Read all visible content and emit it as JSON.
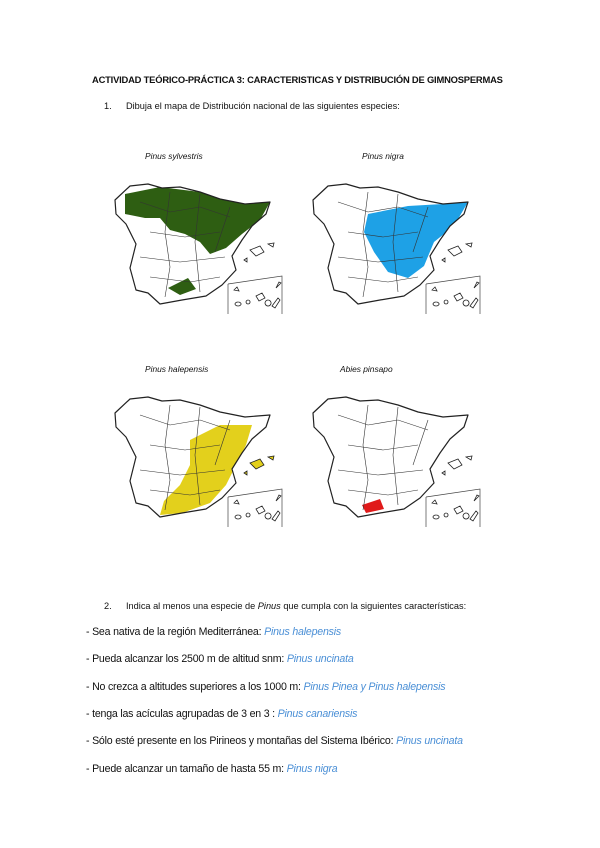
{
  "title": "ACTIVIDAD TEÓRICO-PRÁCTICA 3: CARACTERISTICAS Y DISTRIBUCIÓN DE GIMNOSPERMAS",
  "question1": {
    "number": "1.",
    "text": "Dibuja el mapa de Distribución nacional de las siguientes especies:"
  },
  "maps": [
    {
      "species": "Pinus sylvestris",
      "color": "#2e5e12"
    },
    {
      "species": "Pinus nigra",
      "color": "#1ea1e6"
    },
    {
      "species": "Pinus halepensis",
      "color": "#e3d01c"
    },
    {
      "species": "Abies pinsapo",
      "color": "#e01a1a"
    }
  ],
  "question2": {
    "number": "2.",
    "text_before": "Indica al menos una especie de ",
    "genus": "Pinus",
    "text_after": " que cumpla con la siguientes características:"
  },
  "answers": [
    {
      "prompt": "- Sea nativa de la región Mediterránea: ",
      "answer": "Pinus halepensis"
    },
    {
      "prompt": "- Pueda alcanzar los 2500 m de altitud snm: ",
      "answer": "Pinus uncinata"
    },
    {
      "prompt": "- No crezca a altitudes superiores a los 1000 m: ",
      "answer": "Pinus Pinea y Pinus halepensis"
    },
    {
      "prompt": "- tenga las acículas agrupadas de 3 en 3 : ",
      "answer": "Pinus canariensis"
    },
    {
      "prompt": "- Sólo esté presente en los Pirineos y montañas del Sistema Ibérico: ",
      "answer": "Pinus uncinata"
    },
    {
      "prompt": "- Puede alcanzar un tamaño de hasta 55 m: ",
      "answer": "Pinus nigra"
    }
  ]
}
